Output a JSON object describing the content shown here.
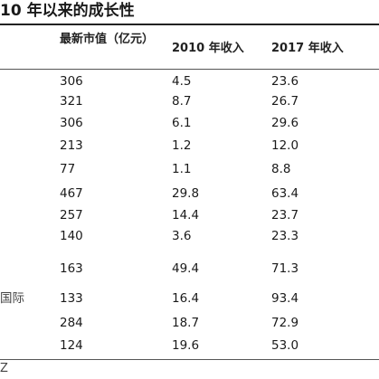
{
  "title": "10 年以来的成长性",
  "table": {
    "headers": {
      "name": "",
      "market_value": "最新市值（亿元）",
      "rev_2010": "2010 年收入",
      "rev_2017": "2017 年收入"
    },
    "rows": [
      {
        "name": "",
        "market_value": "306",
        "rev_2010": "4.5",
        "rev_2017": "23.6"
      },
      {
        "name": "",
        "market_value": "321",
        "rev_2010": "8.7",
        "rev_2017": "26.7"
      },
      {
        "name": "",
        "market_value": "306",
        "rev_2010": "6.1",
        "rev_2017": "29.6"
      },
      {
        "name": "",
        "market_value": "213",
        "rev_2010": "1.2",
        "rev_2017": "12.0"
      },
      {
        "name": "",
        "market_value": "77",
        "rev_2010": "1.1",
        "rev_2017": "8.8"
      },
      {
        "name": "",
        "market_value": "467",
        "rev_2010": "29.8",
        "rev_2017": "63.4"
      },
      {
        "name": "",
        "market_value": "257",
        "rev_2010": "14.4",
        "rev_2017": "23.7"
      },
      {
        "name": "",
        "market_value": "140",
        "rev_2010": "3.6",
        "rev_2017": "23.3"
      },
      {
        "name": "",
        "market_value": "163",
        "rev_2010": "49.4",
        "rev_2017": "71.3"
      },
      {
        "name": "国际",
        "market_value": "133",
        "rev_2010": "16.4",
        "rev_2017": "93.4"
      },
      {
        "name": "",
        "market_value": "284",
        "rev_2010": "18.7",
        "rev_2017": "72.9"
      },
      {
        "name": "",
        "market_value": "124",
        "rev_2010": "19.6",
        "rev_2017": "53.0"
      }
    ]
  },
  "footer": {
    "mark": "Z"
  }
}
